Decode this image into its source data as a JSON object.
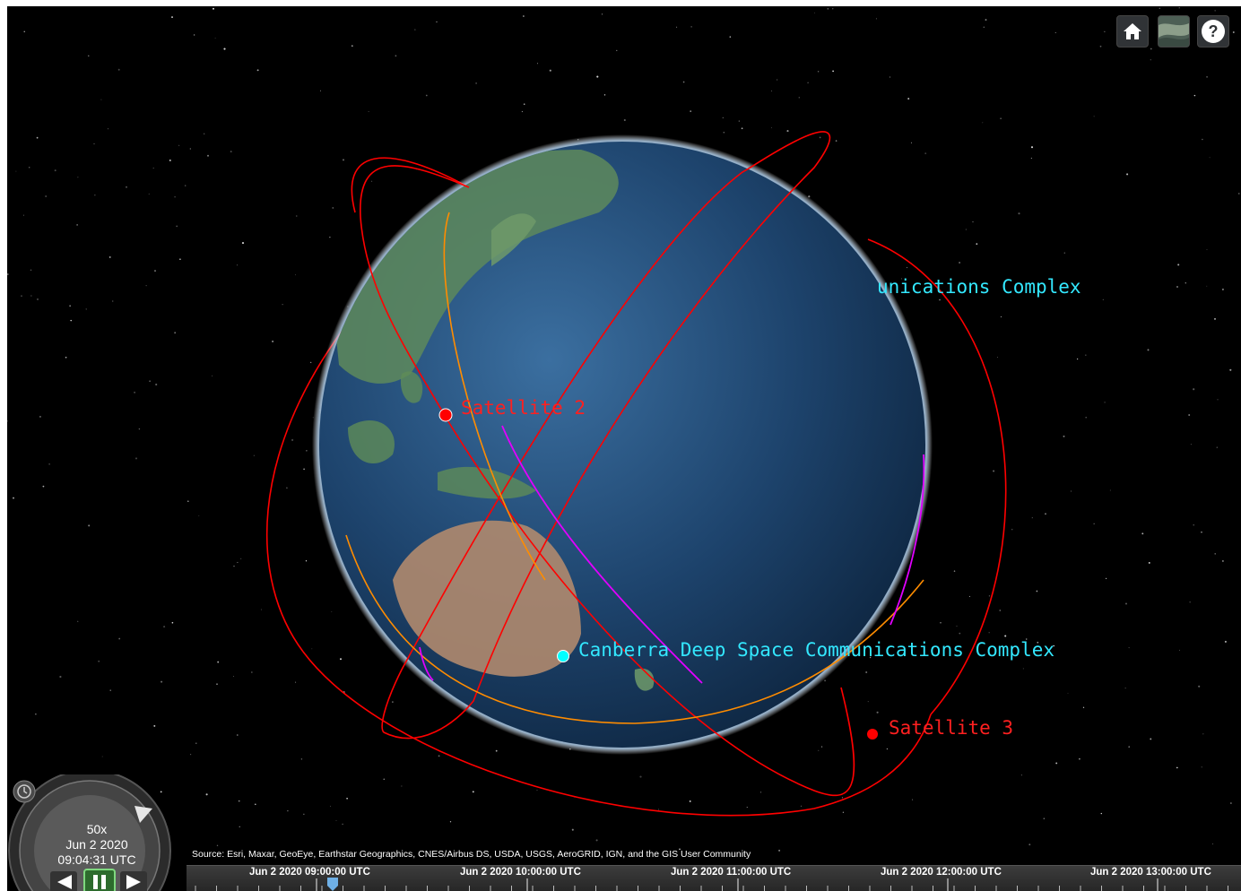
{
  "toolbar": {
    "home_icon": "home-icon",
    "imagery_icon": "imagery-layer-icon",
    "help_icon": "help-icon",
    "help_glyph": "?"
  },
  "scene": {
    "labels": {
      "satellite_2": "Satellite 2",
      "satellite_3": "Satellite 3",
      "canberra": "Canberra Deep Space Communications Complex",
      "back_station": "unications Complex"
    },
    "colors": {
      "orbit": "#ff0000",
      "orbit_secondary": "#ff8c00",
      "access_line": "#e100ff",
      "ground_station": "#00ffff"
    }
  },
  "credit": "Source: Esri, Maxar, GeoEye, Earthstar Geographics, CNES/Airbus DS, USDA, USGS, AeroGRID, IGN, and the GIS User Community",
  "animation": {
    "speed": "50x",
    "date": "Jun 2 2020",
    "time": "09:04:31 UTC",
    "clock_icon": "clock-icon",
    "reverse_icon": "play-reverse-icon",
    "pause_icon": "pause-icon",
    "forward_icon": "play-forward-icon"
  },
  "timeline": {
    "labels": [
      "Jun 2 2020 09:00:00 UTC",
      "Jun 2 2020 10:00:00 UTC",
      "Jun 2 2020 11:00:00 UTC",
      "Jun 2 2020 12:00:00 UTC",
      "Jun 2 2020 13:00:00 UTC"
    ]
  }
}
